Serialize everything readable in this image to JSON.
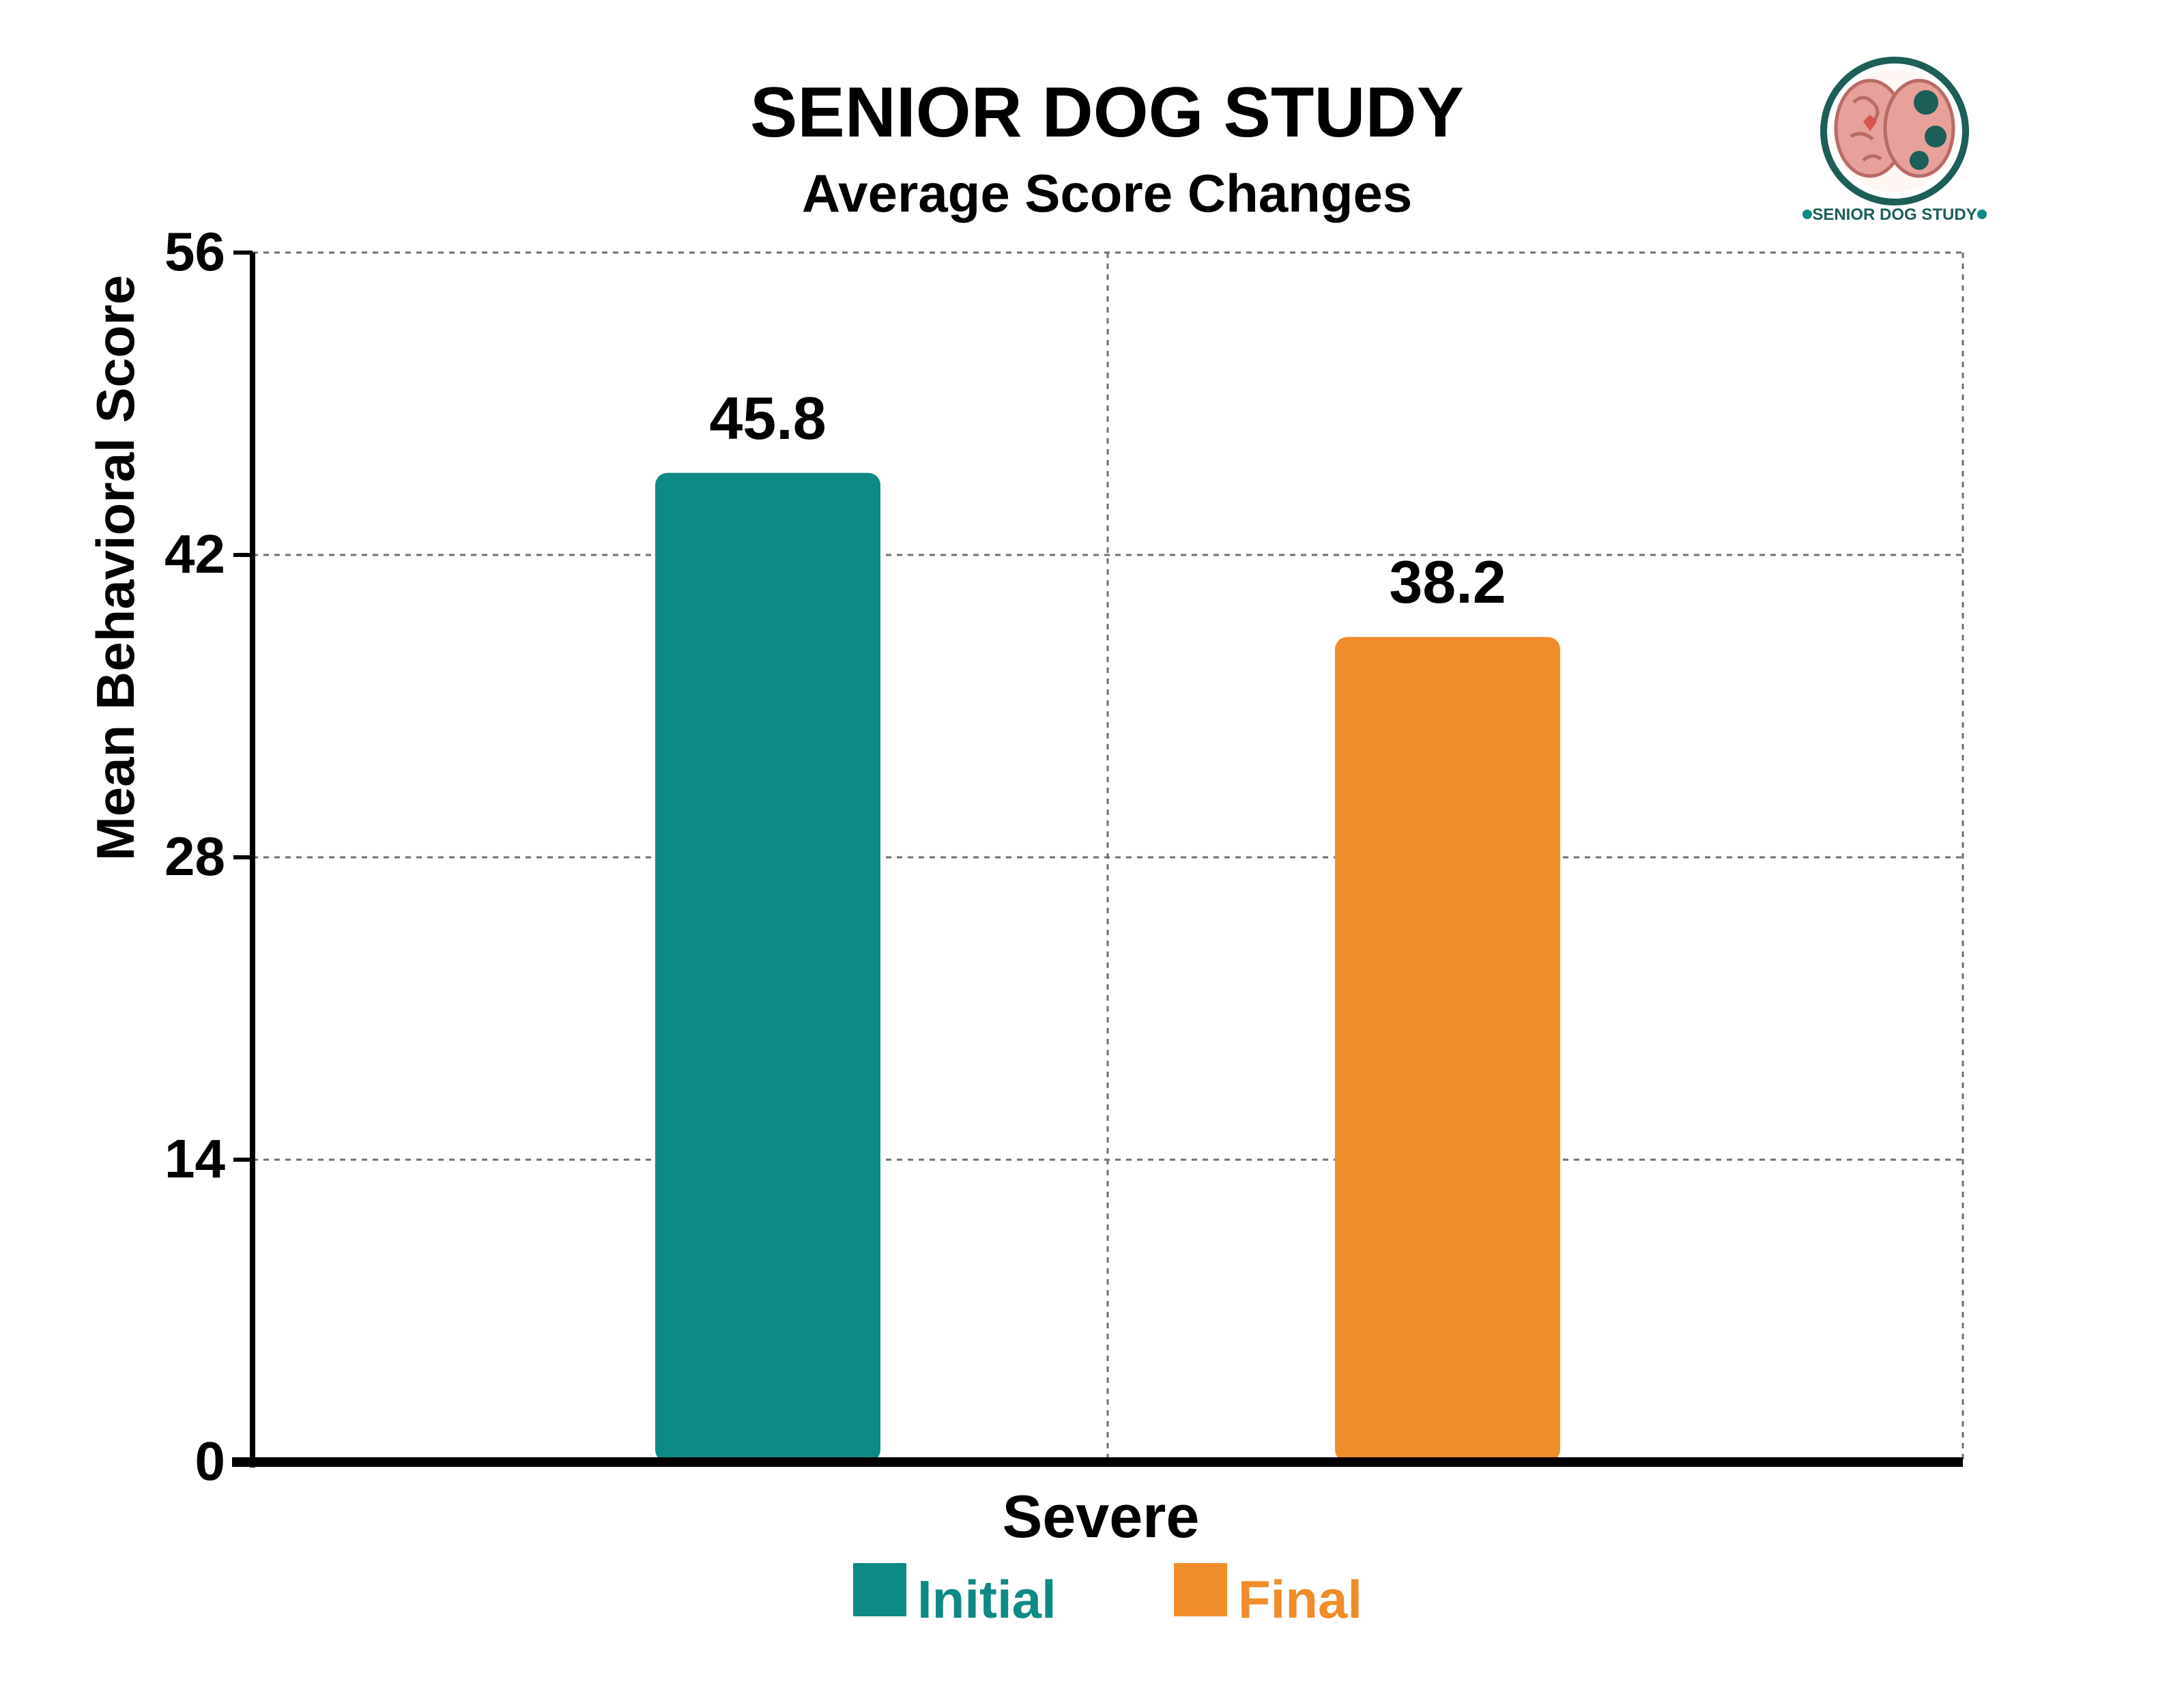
{
  "chart_data": {
    "type": "bar",
    "title": "SENIOR DOG STUDY",
    "subtitle": "Average Score Changes",
    "xlabel": "",
    "ylabel": "Mean Behavioral Score",
    "categories": [
      "Severe"
    ],
    "series": [
      {
        "name": "Initial",
        "values": [
          45.8
        ],
        "color": "#0e8a84"
      },
      {
        "name": "Final",
        "values": [
          38.2
        ],
        "color": "#f08c2a"
      }
    ],
    "ylim": [
      0,
      56
    ],
    "yticks": [
      0,
      14,
      28,
      42,
      56
    ],
    "grid": true,
    "legend_position": "bottom-center"
  },
  "logo": {
    "text": "SENIOR DOG STUDY",
    "icon": "brain-logo-icon",
    "ring_color": "#1d5e58",
    "brain_color": "#e8a09a",
    "accent_color": "#0e8a84"
  }
}
